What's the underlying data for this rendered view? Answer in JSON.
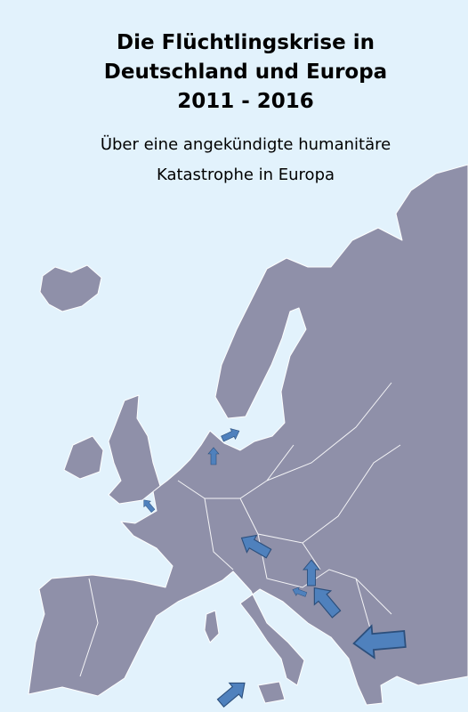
{
  "title": {
    "lines": [
      "Die Flüchtlingskrise in",
      "Deutschland und Europa",
      "2011 - 2016"
    ]
  },
  "subtitle": {
    "lines": [
      "Über eine angekündigte humanitäre",
      "Katastrophe in Europa"
    ]
  }
}
